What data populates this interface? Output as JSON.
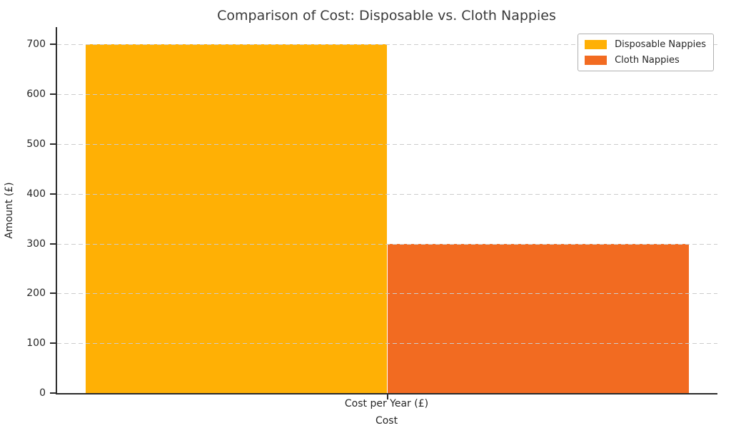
{
  "chart_data": {
    "type": "bar",
    "title": "Comparison of Cost: Disposable vs. Cloth Nappies",
    "xlabel": "Cost",
    "ylabel": "Amount (£)",
    "categories": [
      "Cost per Year (£)"
    ],
    "series": [
      {
        "name": "Disposable Nappies",
        "values": [
          700
        ],
        "color": "#FFB005"
      },
      {
        "name": "Cloth Nappies",
        "values": [
          300
        ],
        "color": "#F26B21"
      }
    ],
    "ylim": [
      0,
      735
    ],
    "yticks": [
      0,
      100,
      200,
      300,
      400,
      500,
      600,
      700
    ],
    "grid": "horizontal-dashed-over-bars",
    "legend_position": "upper right",
    "colors": {
      "spine": "#2b2b2b",
      "gridline": "#cccccc",
      "title_text": "#3a3a3a",
      "tick_text": "#262626",
      "background": "#ffffff"
    }
  }
}
